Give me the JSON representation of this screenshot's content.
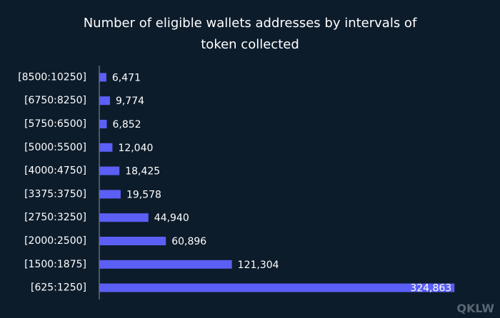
{
  "chart_data": {
    "type": "hbar",
    "title": "Number of eligible wallets addresses by intervals of token collected",
    "categories": [
      "[8500:10250]",
      "[6750:8250]",
      "[5750:6500]",
      "[5000:5500]",
      "[4000:4750]",
      "[3375:3750]",
      "[2750:3250]",
      "[2000:2500]",
      "[1500:1875]",
      "[625:1250]"
    ],
    "values": [
      6471,
      9774,
      6852,
      12040,
      18425,
      19578,
      44940,
      60896,
      121304,
      324863
    ],
    "value_labels": [
      "6,471",
      "9,774",
      "6,852",
      "12,040",
      "18,425",
      "19,578",
      "44,940",
      "60,896",
      "121,304",
      "324,863"
    ],
    "color": "#5b5ff5",
    "xlim": [
      0,
      360000
    ],
    "watermark": "QKLW"
  }
}
